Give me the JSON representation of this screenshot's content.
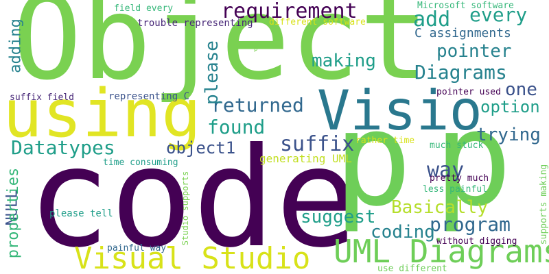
{
  "palette": {
    "dark_purple": "#440154",
    "purple": "#482878",
    "indigo": "#3b528b",
    "blue": "#31688e",
    "teal": "#26828e",
    "green_teal": "#1f9e89",
    "green": "#35b779",
    "light_green": "#6ece58",
    "lime": "#b5de2b",
    "yellow": "#e1e524"
  },
  "words": [
    "Object",
    "code",
    "p",
    "using",
    "Visio",
    "UML Diagrams",
    "Visual Studio",
    "requirement",
    "add",
    "every",
    "C assignments",
    "pointer",
    "Diagrams",
    "one",
    "option",
    "making",
    "returned",
    "found",
    "please",
    "Datatypes",
    "object1",
    "suffix",
    "way",
    "trying",
    "adding",
    "NULL",
    "properties",
    "generating UML",
    "Basically",
    "suggest",
    "program",
    "coding",
    "field every",
    "trouble representing",
    "different software",
    "Microsoft software",
    "suffix field",
    "representing C",
    "pointer used",
    "rather time",
    "much stuck",
    "time consuming",
    "pretty much",
    "less painful",
    "please tell",
    "Studio supports",
    "supports making",
    "painful way",
    "without digging",
    "use different"
  ]
}
